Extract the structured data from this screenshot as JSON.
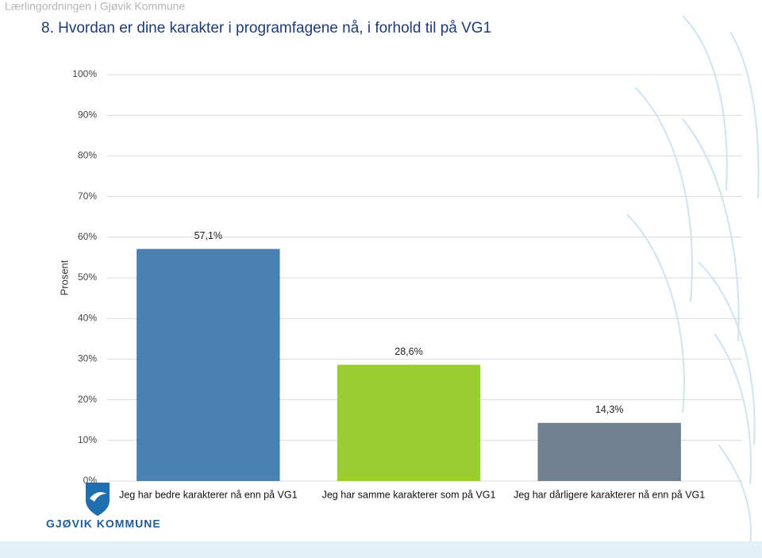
{
  "header": "Lærlingordningen i Gjøvik Kommune",
  "logo_text": "GJØVIK KOMMUNE",
  "chart_data": {
    "type": "bar",
    "title": "8. Hvordan er dine karakter i programfagene nå, i forhold til på VG1",
    "ylabel": "Prosent",
    "categories": [
      "Jeg har bedre karakterer nå enn på VG1",
      "Jeg har samme karakterer som på VG1",
      "Jeg har dårligere karakterer nå enn på VG1"
    ],
    "values": [
      57.1,
      28.6,
      14.3
    ],
    "value_labels": [
      "57,1%",
      "28,6%",
      "14,3%"
    ],
    "colors": [
      "#4a80b2",
      "#9acd32",
      "#708192"
    ],
    "ylim": [
      0,
      100
    ],
    "yticks": [
      {
        "value": 0,
        "label": "0%"
      },
      {
        "value": 10,
        "label": "10%"
      },
      {
        "value": 20,
        "label": "20%"
      },
      {
        "value": 30,
        "label": "30%"
      },
      {
        "value": 40,
        "label": "40%"
      },
      {
        "value": 50,
        "label": "50%"
      },
      {
        "value": 60,
        "label": "60%"
      },
      {
        "value": 70,
        "label": "70%"
      },
      {
        "value": 80,
        "label": "80%"
      },
      {
        "value": 90,
        "label": "90%"
      },
      {
        "value": 100,
        "label": "100%"
      }
    ],
    "grid": true
  }
}
